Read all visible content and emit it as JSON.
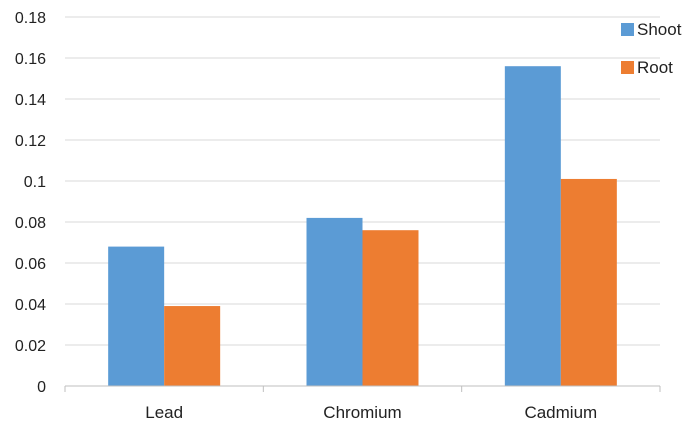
{
  "chart_data": {
    "type": "bar",
    "title": "",
    "xlabel": "",
    "ylabel": "",
    "categories": [
      "Lead",
      "Chromium",
      "Cadmium"
    ],
    "series": [
      {
        "name": "Shoot",
        "values": [
          0.068,
          0.082,
          0.156
        ],
        "color": "#5B9BD5"
      },
      {
        "name": "Root",
        "values": [
          0.039,
          0.076,
          0.101
        ],
        "color": "#ED7D31"
      }
    ],
    "ylim": [
      0,
      0.18
    ],
    "yticks": [
      "0",
      "0.02",
      "0.04",
      "0.06",
      "0.08",
      "0.1",
      "0.12",
      "0.14",
      "0.16",
      "0.18"
    ],
    "grid": true,
    "legend_position": "top-right"
  }
}
